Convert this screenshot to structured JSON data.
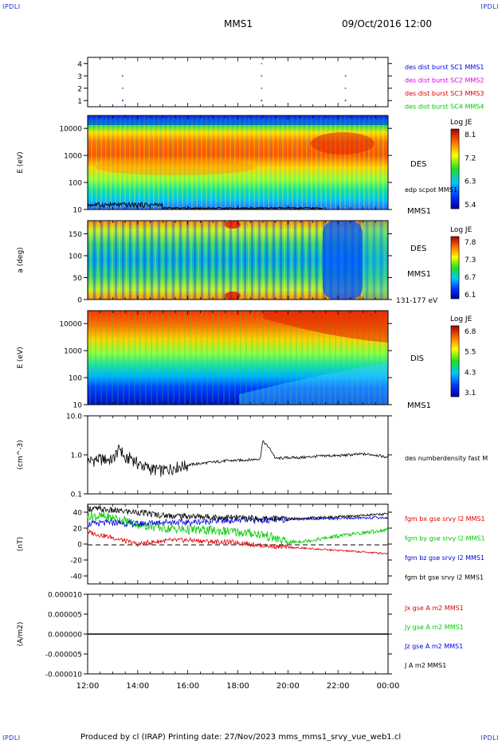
{
  "corners": {
    "tl": "IPDLI",
    "tr": "IPDLI",
    "bl": "IPDLI",
    "br": "IPDLI"
  },
  "header": {
    "spacecraft": "MMS1",
    "datetime": "09/Oct/2016 12:00"
  },
  "footer": {
    "text": "Produced by cl (IRAP)   Printing date: 27/Nov/2023   mms_mms1_srvy_vue_web1.cl"
  },
  "time_axis": {
    "ticks": [
      "12:00",
      "14:00",
      "16:00",
      "18:00",
      "20:00",
      "22:00",
      "00:00"
    ]
  },
  "colors": {
    "red": "#e00000",
    "green": "#00c800",
    "blue": "#0000e0",
    "magenta": "#e000e0",
    "black": "#000000"
  },
  "chart_data": [
    {
      "id": "burst",
      "type": "scatter",
      "y_ticks": [
        "1",
        "2",
        "3",
        "4"
      ],
      "ylim": [
        0.5,
        4.5
      ],
      "legend": [
        {
          "text": "des dist burst SC1 MMS1",
          "color": "#0000e0"
        },
        {
          "text": "des dist burst SC2 MMS2",
          "color": "#e000e0"
        },
        {
          "text": "des dist burst SC3 MMS3",
          "color": "#e00000"
        },
        {
          "text": "des dist burst SC4 MMS4",
          "color": "#00c800"
        }
      ],
      "series": [
        {
          "name": "des dist burst SC1 MMS1",
          "x": [
            13.4,
            18.95,
            22.3
          ],
          "y": [
            1,
            1,
            1
          ]
        },
        {
          "name": "des dist burst SC2 MMS2",
          "x": [
            13.4,
            18.95,
            22.3
          ],
          "y": [
            2,
            2,
            2
          ]
        },
        {
          "name": "des dist burst SC3 MMS3",
          "x": [
            13.4,
            18.95,
            22.3
          ],
          "y": [
            3,
            3,
            3
          ]
        },
        {
          "name": "des dist burst SC4 MMS4",
          "x": [
            18.95
          ],
          "y": [
            4
          ]
        }
      ]
    },
    {
      "id": "des_energy",
      "type": "heatmap",
      "ylabel": "E (eV)",
      "y_ticks": [
        "10",
        "100",
        "1000",
        "10000"
      ],
      "ylim": [
        10,
        30000
      ],
      "log": true,
      "labels": [
        "DES",
        "edp scpot MMS1",
        "MMS1"
      ],
      "colorbar": {
        "title": "Log JE",
        "ticks": [
          "8.1",
          "7.2",
          "6.3",
          "5.4"
        ]
      }
    },
    {
      "id": "des_pitch",
      "type": "heatmap",
      "ylabel": "a (deg)",
      "y_ticks": [
        "0",
        "50",
        "100",
        "150"
      ],
      "ylim": [
        0,
        180
      ],
      "labels": [
        "DES",
        "MMS1",
        "131-177 eV"
      ],
      "colorbar": {
        "title": "Log JE",
        "ticks": [
          "7.8",
          "7.3",
          "6.7",
          "6.1"
        ]
      }
    },
    {
      "id": "dis_energy",
      "type": "heatmap",
      "ylabel": "E (eV)",
      "y_ticks": [
        "10",
        "100",
        "1000",
        "10000"
      ],
      "ylim": [
        10,
        30000
      ],
      "log": true,
      "labels": [
        "DIS",
        "MMS1"
      ],
      "colorbar": {
        "title": "Log JE",
        "ticks": [
          "6.8",
          "5.5",
          "4.3",
          "3.1"
        ]
      }
    },
    {
      "id": "density",
      "type": "line",
      "ylabel": "(cm^-3)",
      "y_ticks": [
        "0.1",
        "1.0",
        "10.0"
      ],
      "ylim": [
        0.1,
        10
      ],
      "log": true,
      "legend": [
        {
          "text": "des numberdensity fast M",
          "color": "#000000"
        }
      ],
      "series": [
        {
          "name": "des numberdensity fast M",
          "x": [
            12.0,
            12.5,
            13.0,
            13.3,
            13.5,
            13.7,
            14.0,
            14.5,
            15.0,
            15.5,
            16.0,
            16.5,
            17.0,
            17.5,
            18.0,
            18.5,
            18.9,
            19.0,
            19.5,
            20.0,
            20.5,
            21.0,
            21.5,
            22.0,
            22.5,
            23.0,
            23.5,
            24.0
          ],
          "y": [
            0.7,
            0.8,
            0.75,
            1.5,
            0.7,
            0.9,
            0.6,
            0.45,
            0.4,
            0.5,
            0.55,
            0.6,
            0.65,
            0.7,
            0.72,
            0.75,
            0.8,
            2.2,
            0.8,
            0.85,
            0.85,
            0.9,
            0.95,
            0.95,
            1.0,
            1.05,
            1.0,
            0.85
          ]
        }
      ]
    },
    {
      "id": "magnetic_field",
      "type": "line",
      "ylabel": "(nT)",
      "y_ticks": [
        "-40",
        "-20",
        "0",
        "20",
        "40"
      ],
      "ylim": [
        -50,
        50
      ],
      "legend": [
        {
          "text": "fgm bx gse srvy l2 MMS1",
          "color": "#e00000"
        },
        {
          "text": "fgm by gse srvy l2 MMS1",
          "color": "#00c800"
        },
        {
          "text": "fgm bz gse srvy l2 MMS1",
          "color": "#0000e0"
        },
        {
          "text": "fgm bt gse srvy l2 MMS1",
          "color": "#000000"
        }
      ],
      "series": [
        {
          "name": "fgm bx gse srvy l2 MMS1",
          "color": "#e00000",
          "x": [
            12.0,
            13.0,
            14.0,
            15.0,
            16.0,
            17.0,
            18.0,
            19.0,
            20.0,
            21.0,
            22.0,
            23.0,
            24.0
          ],
          "y": [
            15,
            8,
            0,
            4,
            5,
            3,
            2,
            -2,
            -4,
            -6,
            -8,
            -10,
            -12
          ]
        },
        {
          "name": "fgm by gse srvy l2 MMS1",
          "color": "#00c800",
          "x": [
            12.0,
            13.0,
            14.0,
            15.0,
            16.0,
            17.0,
            18.0,
            19.0,
            20.0,
            21.0,
            22.0,
            23.0,
            24.0
          ],
          "y": [
            36,
            33,
            25,
            20,
            18,
            17,
            15,
            12,
            2,
            5,
            10,
            14,
            18
          ]
        },
        {
          "name": "fgm bz gse srvy l2 MMS1",
          "color": "#0000e0",
          "x": [
            12.0,
            13.0,
            14.0,
            15.0,
            16.0,
            17.0,
            18.0,
            19.0,
            20.0,
            21.0,
            22.0,
            23.0,
            24.0
          ],
          "y": [
            25,
            27,
            25,
            28,
            27,
            29,
            30,
            30,
            31,
            32,
            32,
            33,
            33
          ]
        },
        {
          "name": "fgm bt gse srvy l2 MMS1",
          "color": "#000000",
          "x": [
            12.0,
            13.0,
            14.0,
            15.0,
            16.0,
            17.0,
            18.0,
            19.0,
            20.0,
            21.0,
            22.0,
            23.0,
            24.0
          ],
          "y": [
            45,
            42,
            40,
            36,
            35,
            34,
            33,
            32,
            32,
            33,
            34,
            36,
            38
          ]
        }
      ]
    },
    {
      "id": "current_density",
      "type": "line",
      "ylabel": "(A/m2)",
      "y_ticks": [
        "-0.000010",
        "-0.000005",
        "0.000000",
        "0.000005",
        "0.000010"
      ],
      "ylim": [
        -1e-05,
        1e-05
      ],
      "legend": [
        {
          "text": "Jx gse A m2 MMS1",
          "color": "#e00000"
        },
        {
          "text": "Jy gse A m2 MMS1",
          "color": "#00c800"
        },
        {
          "text": "Jz gse A m2 MMS1",
          "color": "#0000e0"
        },
        {
          "text": "J A m2 MMS1",
          "color": "#000000"
        }
      ],
      "series": [
        {
          "name": "J A m2 MMS1",
          "x": [
            12.0,
            24.0
          ],
          "y": [
            0,
            0
          ]
        }
      ]
    }
  ]
}
